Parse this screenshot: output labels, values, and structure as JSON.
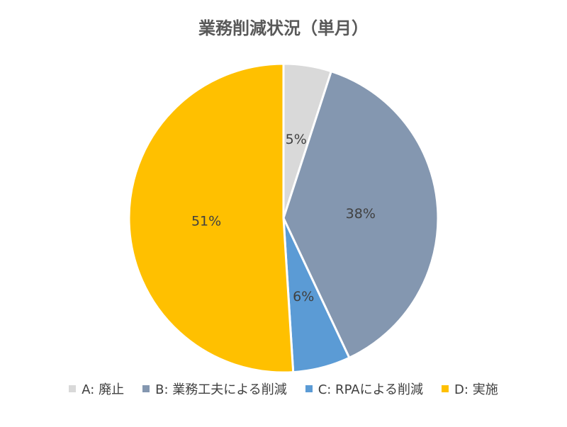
{
  "chart_data": {
    "type": "pie",
    "title": "業務削減状況（単月）",
    "start_angle_deg": 0,
    "direction": "clockwise",
    "legend_position": "bottom",
    "slices": [
      {
        "label": "A: 廃止",
        "value": 5,
        "display": "5%",
        "color": "#D9D9D9"
      },
      {
        "label": "B: 業務工夫による削減",
        "value": 38,
        "display": "38%",
        "color": "#8497B0"
      },
      {
        "label": "C: RPAによる削減",
        "value": 6,
        "display": "6%",
        "color": "#5B9BD5"
      },
      {
        "label": "D: 実施",
        "value": 51,
        "display": "51%",
        "color": "#FFC000"
      }
    ]
  }
}
